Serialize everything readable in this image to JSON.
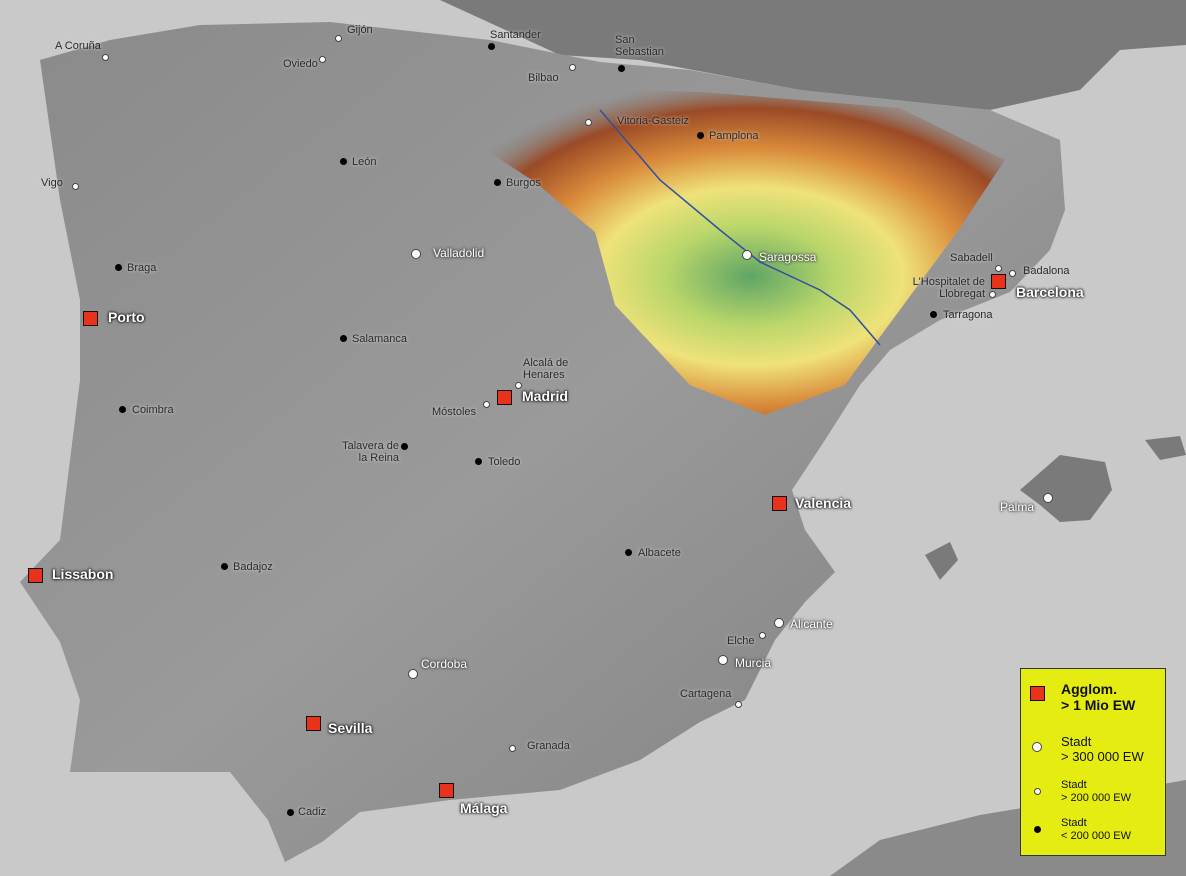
{
  "cities": [
    {
      "name": "Porto",
      "kind": "agglom"
    },
    {
      "name": "Lissabon",
      "kind": "agglom"
    },
    {
      "name": "Madrid",
      "kind": "agglom"
    },
    {
      "name": "Barcelona",
      "kind": "agglom"
    },
    {
      "name": "Valencia",
      "kind": "agglom"
    },
    {
      "name": "Sevilla",
      "kind": "agglom"
    },
    {
      "name": "Málaga",
      "kind": "agglom"
    },
    {
      "name": "Valladolid",
      "kind": "large"
    },
    {
      "name": "Saragossa",
      "kind": "large"
    },
    {
      "name": "Alicante",
      "kind": "large"
    },
    {
      "name": "Murcia",
      "kind": "large"
    },
    {
      "name": "Cordoba",
      "kind": "large"
    },
    {
      "name": "Palma",
      "kind": "large"
    },
    {
      "name": "A Coruña",
      "kind": "medium"
    },
    {
      "name": "Gijón",
      "kind": "medium"
    },
    {
      "name": "Oviedo",
      "kind": "medium"
    },
    {
      "name": "Bilbao",
      "kind": "medium"
    },
    {
      "name": "Vitoria-Gasteiz",
      "kind": "medium"
    },
    {
      "name": "Vigo",
      "kind": "medium"
    },
    {
      "name": "Sabadell",
      "kind": "medium"
    },
    {
      "name": "Badalona",
      "kind": "medium"
    },
    {
      "name": "L'Hospitalet de Llobregat",
      "kind": "medium"
    },
    {
      "name": "Alcalá de Henares",
      "kind": "medium"
    },
    {
      "name": "Móstoles",
      "kind": "medium"
    },
    {
      "name": "Elche",
      "kind": "medium"
    },
    {
      "name": "Cartagena",
      "kind": "medium"
    },
    {
      "name": "Granada",
      "kind": "medium"
    },
    {
      "name": "Santander",
      "kind": "small"
    },
    {
      "name": "San Sebastian",
      "kind": "small"
    },
    {
      "name": "Pamplona",
      "kind": "small"
    },
    {
      "name": "León",
      "kind": "small"
    },
    {
      "name": "Burgos",
      "kind": "small"
    },
    {
      "name": "Braga",
      "kind": "small"
    },
    {
      "name": "Salamanca",
      "kind": "small"
    },
    {
      "name": "Coimbra",
      "kind": "small"
    },
    {
      "name": "Talavera de la Reina",
      "kind": "small"
    },
    {
      "name": "Toledo",
      "kind": "small"
    },
    {
      "name": "Albacete",
      "kind": "small"
    },
    {
      "name": "Badajoz",
      "kind": "small"
    },
    {
      "name": "Tarragona",
      "kind": "small"
    },
    {
      "name": "Cadiz",
      "kind": "small"
    }
  ],
  "legend": {
    "items": [
      {
        "lines": [
          "Agglom.",
          "> 1 Mio EW"
        ],
        "kind": "agglom"
      },
      {
        "lines": [
          "Stadt",
          "> 300 000 EW"
        ],
        "kind": "large"
      },
      {
        "lines": [
          "Stadt",
          "> 200 000 EW"
        ],
        "kind": "medium"
      },
      {
        "lines": [
          "Stadt",
          "< 200 000 EW"
        ],
        "kind": "small"
      }
    ]
  }
}
